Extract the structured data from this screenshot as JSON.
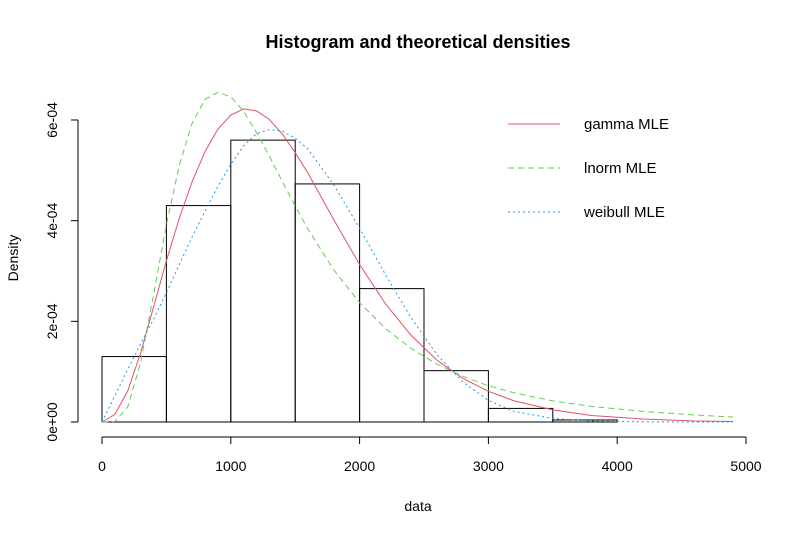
{
  "chart_data": {
    "type": "histogram",
    "title": "Histogram and theoretical densities",
    "xlabel": "data",
    "ylabel": "Density",
    "xlim": [
      0,
      5000
    ],
    "ylim": [
      0,
      0.0006
    ],
    "x_ticks": [
      {
        "value": 0,
        "label": "0"
      },
      {
        "value": 1000,
        "label": "1000"
      },
      {
        "value": 2000,
        "label": "2000"
      },
      {
        "value": 3000,
        "label": "3000"
      },
      {
        "value": 4000,
        "label": "4000"
      },
      {
        "value": 5000,
        "label": "5000"
      }
    ],
    "y_ticks": [
      {
        "value": 0,
        "label": "0e+00"
      },
      {
        "value": 0.0002,
        "label": "2e-04"
      },
      {
        "value": 0.0004,
        "label": "4e-04"
      },
      {
        "value": 0.0006,
        "label": "6e-04"
      }
    ],
    "bins": [
      {
        "x0": 0,
        "x1": 500,
        "density": 0.00013
      },
      {
        "x0": 500,
        "x1": 1000,
        "density": 0.00043
      },
      {
        "x0": 1000,
        "x1": 1500,
        "density": 0.00056
      },
      {
        "x0": 1500,
        "x1": 2000,
        "density": 0.000473
      },
      {
        "x0": 2000,
        "x1": 2500,
        "density": 0.000265
      },
      {
        "x0": 2500,
        "x1": 3000,
        "density": 0.000102
      },
      {
        "x0": 3000,
        "x1": 3500,
        "density": 2.7e-05
      },
      {
        "x0": 3500,
        "x1": 4000,
        "density": 4e-06
      }
    ],
    "series": [
      {
        "name": "gamma MLE",
        "color": "#DF536B",
        "dash": "solid",
        "x": [
          0,
          100,
          200,
          300,
          400,
          500,
          600,
          700,
          800,
          900,
          1000,
          1100,
          1200,
          1300,
          1400,
          1500,
          1600,
          1800,
          2000,
          2200,
          2400,
          2600,
          2800,
          3000,
          3200,
          3500,
          3800,
          4200,
          4600,
          4900
        ],
        "y": [
          0,
          1.5e-05,
          6.2e-05,
          0.000137,
          0.000228,
          0.00032,
          0.000405,
          0.000478,
          0.000537,
          0.000582,
          0.00061,
          0.000622,
          0.000618,
          0.000601,
          0.000572,
          0.000535,
          0.000494,
          0.000402,
          0.000313,
          0.000235,
          0.000172,
          0.000123,
          8.7e-05,
          6.1e-05,
          4.2e-05,
          2.4e-05,
          1.3e-05,
          6e-06,
          2e-06,
          1e-06
        ]
      },
      {
        "name": "lnorm MLE",
        "color": "#61D04F",
        "dash": "6,4",
        "x": [
          0,
          100,
          200,
          300,
          400,
          500,
          600,
          700,
          800,
          900,
          1000,
          1100,
          1200,
          1300,
          1400,
          1500,
          1600,
          1800,
          2000,
          2200,
          2400,
          2600,
          2800,
          3000,
          3200,
          3500,
          3800,
          4200,
          4600,
          4900
        ],
        "y": [
          0,
          1e-06,
          3e-05,
          0.000118,
          0.000252,
          0.000392,
          0.00051,
          0.000594,
          0.000641,
          0.000655,
          0.000646,
          0.000617,
          0.000575,
          0.000528,
          0.000478,
          0.000429,
          0.000383,
          0.000302,
          0.000237,
          0.000186,
          0.000146,
          0.000115,
          9.1e-05,
          7.2e-05,
          5.8e-05,
          4.2e-05,
          3.1e-05,
          2.1e-05,
          1.4e-05,
          1e-05
        ]
      },
      {
        "name": "weibull MLE",
        "color": "#2297E6",
        "dash": "2,3",
        "x": [
          0,
          100,
          200,
          300,
          400,
          500,
          600,
          700,
          800,
          900,
          1000,
          1100,
          1200,
          1300,
          1400,
          1500,
          1600,
          1800,
          2000,
          2200,
          2400,
          2600,
          2800,
          3000,
          3200,
          3500,
          3800,
          4200,
          4600,
          4900
        ],
        "y": [
          0,
          5.2e-05,
          0.000105,
          0.000155,
          0.000204,
          0.000257,
          0.000313,
          0.000368,
          0.000419,
          0.000468,
          0.000512,
          0.000549,
          0.000573,
          0.000581,
          0.000578,
          0.000564,
          0.000542,
          0.000471,
          0.000385,
          0.000293,
          0.000207,
          0.000134,
          8e-05,
          4.3e-05,
          2.1e-05,
          7e-06,
          2e-06,
          3e-07,
          0,
          0
        ]
      }
    ],
    "legend": {
      "position": "top-right",
      "box": false
    },
    "grid": false
  }
}
